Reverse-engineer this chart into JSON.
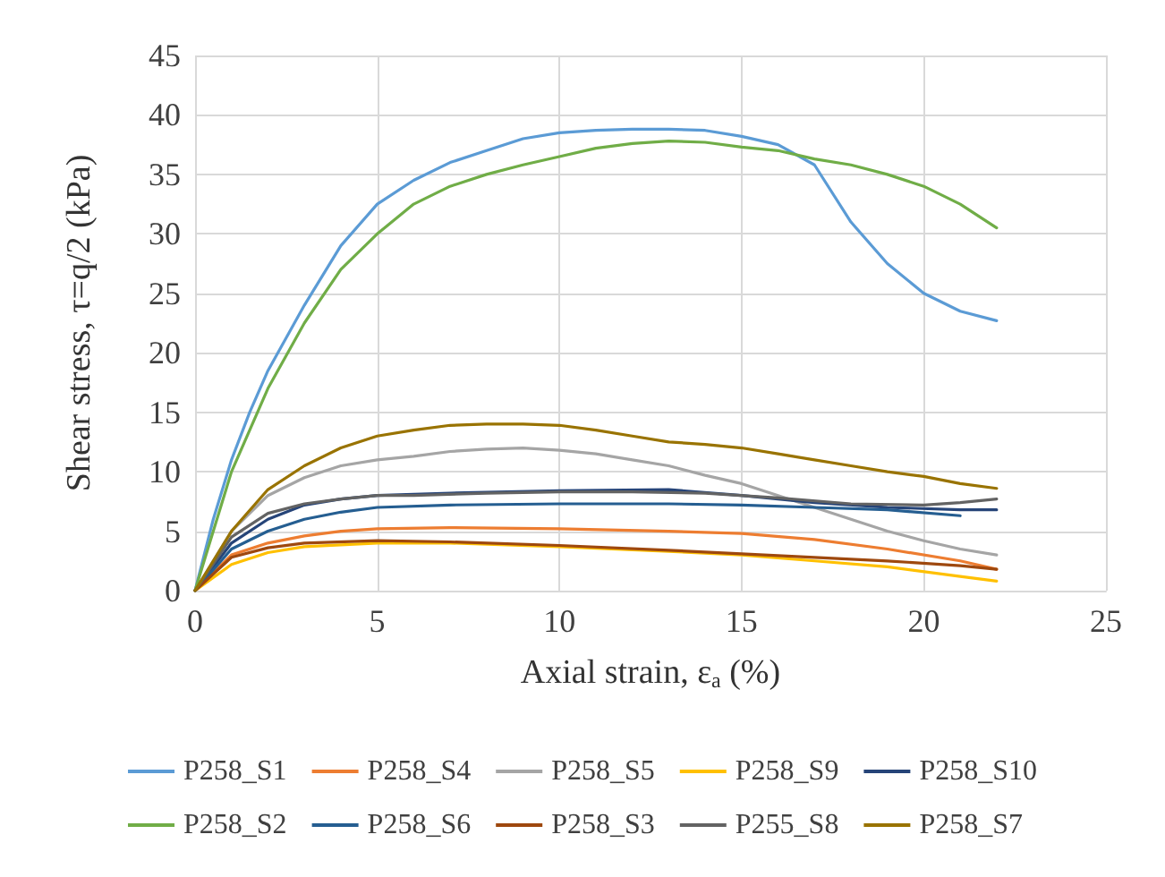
{
  "chart_data": {
    "type": "line",
    "xlabel": "Axial strain, ε$_{a}$ (%)",
    "ylabel": "Shear stress, τ=q/2 (kPa)",
    "xlim": [
      0,
      25
    ],
    "xticks": [
      0,
      5,
      10,
      15,
      20,
      25
    ],
    "ylim": [
      0,
      45
    ],
    "yticks": [
      0,
      5,
      10,
      15,
      20,
      25,
      30,
      35,
      40,
      45
    ],
    "grid": true,
    "legend": "bottom",
    "marker": "none",
    "line_style": "solid",
    "series": [
      {
        "name": "P258_S1",
        "color": "#5b9bd5",
        "x": [
          0,
          0.5,
          1,
          1.5,
          2,
          3,
          4,
          5,
          6,
          7,
          8,
          9,
          10,
          11,
          12,
          13,
          14,
          15,
          16,
          17,
          18,
          19,
          20,
          21,
          22
        ],
        "values": [
          0,
          6,
          11,
          15,
          18.5,
          24,
          29,
          32.5,
          34.5,
          36,
          37,
          38,
          38.5,
          38.7,
          38.8,
          38.8,
          38.7,
          38.2,
          37.5,
          35.8,
          31,
          27.5,
          25,
          23.5,
          22.7
        ]
      },
      {
        "name": "P258_S4",
        "color": "#ed7d31",
        "x": [
          0,
          1,
          2,
          3,
          4,
          5,
          7,
          10,
          13,
          15,
          17,
          19,
          21,
          22
        ],
        "values": [
          0,
          3,
          4,
          4.6,
          5,
          5.2,
          5.3,
          5.2,
          5,
          4.8,
          4.3,
          3.5,
          2.5,
          1.8
        ]
      },
      {
        "name": "P258_S5",
        "color": "#a5a5a5",
        "x": [
          0,
          1,
          2,
          3,
          4,
          5,
          6,
          7,
          8,
          9,
          10,
          11,
          12,
          13,
          14,
          15,
          16,
          17,
          18,
          19,
          20,
          21,
          22
        ],
        "values": [
          0,
          5,
          8,
          9.5,
          10.5,
          11,
          11.3,
          11.7,
          11.9,
          12,
          11.8,
          11.5,
          11,
          10.5,
          9.7,
          9,
          8,
          7,
          6,
          5,
          4.2,
          3.5,
          3
        ]
      },
      {
        "name": "P258_S9",
        "color": "#ffc000",
        "x": [
          0,
          1,
          2,
          3,
          5,
          7,
          10,
          13,
          15,
          17,
          19,
          21,
          22
        ],
        "values": [
          0,
          2.2,
          3.2,
          3.7,
          4,
          4,
          3.7,
          3.3,
          3,
          2.5,
          2,
          1.2,
          0.8
        ]
      },
      {
        "name": "P258_S10",
        "color": "#264478",
        "x": [
          0,
          1,
          2,
          3,
          4,
          5,
          7,
          10,
          13,
          15,
          17,
          19,
          21,
          22
        ],
        "values": [
          0,
          4,
          6,
          7.2,
          7.7,
          8,
          8.2,
          8.4,
          8.5,
          8,
          7.4,
          7,
          6.8,
          6.8
        ]
      },
      {
        "name": "P258_S2",
        "color": "#70ad47",
        "x": [
          0,
          1,
          2,
          3,
          4,
          5,
          6,
          7,
          8,
          9,
          10,
          11,
          12,
          13,
          14,
          15,
          16,
          17,
          18,
          19,
          20,
          21,
          22
        ],
        "values": [
          0,
          10,
          17,
          22.5,
          27,
          30,
          32.5,
          34,
          35,
          35.8,
          36.5,
          37.2,
          37.6,
          37.8,
          37.7,
          37.3,
          37,
          36.3,
          35.8,
          35,
          34,
          32.5,
          30.5
        ]
      },
      {
        "name": "P258_S6",
        "color": "#255e91",
        "x": [
          0,
          1,
          2,
          3,
          4,
          5,
          7,
          10,
          13,
          15,
          17,
          19,
          21
        ],
        "values": [
          0,
          3.5,
          5,
          6,
          6.6,
          7,
          7.2,
          7.3,
          7.3,
          7.2,
          7,
          6.8,
          6.3
        ]
      },
      {
        "name": "P258_S3",
        "color": "#9e480e",
        "x": [
          0,
          1,
          2,
          3,
          5,
          7,
          10,
          13,
          15,
          17,
          19,
          21,
          22
        ],
        "values": [
          0,
          2.8,
          3.6,
          4,
          4.2,
          4.1,
          3.8,
          3.4,
          3.1,
          2.8,
          2.5,
          2.1,
          1.8
        ]
      },
      {
        "name": "P255_S8",
        "color": "#636363",
        "x": [
          0,
          1,
          2,
          3,
          4,
          5,
          6,
          8,
          10,
          12,
          14,
          16,
          18,
          20,
          21,
          22
        ],
        "values": [
          0,
          4.5,
          6.5,
          7.3,
          7.7,
          8,
          8,
          8.2,
          8.3,
          8.3,
          8.2,
          7.8,
          7.3,
          7.2,
          7.4,
          7.7
        ]
      },
      {
        "name": "P258_S7",
        "color": "#997300",
        "x": [
          0,
          1,
          2,
          3,
          4,
          5,
          6,
          7,
          8,
          9,
          10,
          11,
          12,
          13,
          14,
          15,
          16,
          17,
          18,
          19,
          20,
          21,
          22
        ],
        "values": [
          0,
          5,
          8.5,
          10.5,
          12,
          13,
          13.5,
          13.9,
          14,
          14,
          13.9,
          13.5,
          13,
          12.5,
          12.3,
          12,
          11.5,
          11,
          10.5,
          10,
          9.6,
          9,
          8.6
        ]
      }
    ]
  }
}
